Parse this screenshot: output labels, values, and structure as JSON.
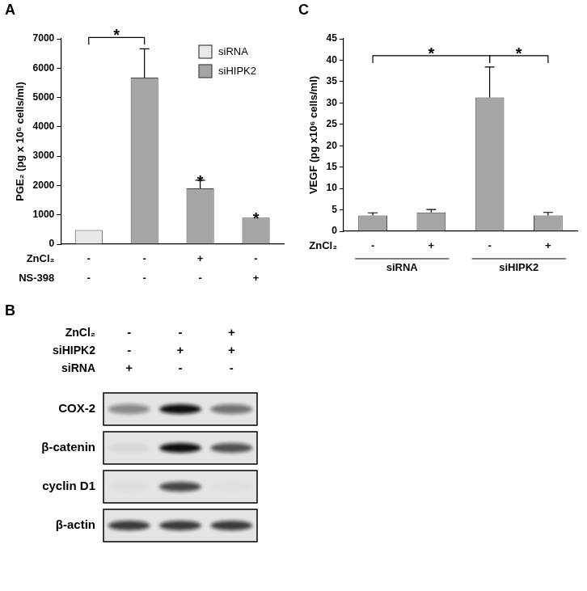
{
  "chart_data": [
    {
      "panel": "A",
      "type": "bar",
      "y_label": "PGE₂ (pg x 10⁶ cells/ml)",
      "categories": [
        null,
        null,
        null,
        null
      ],
      "series": [
        {
          "name": "siRNA",
          "color": "#e8e8e8",
          "values": [
            480,
            null,
            null,
            null
          ],
          "errors": [
            null,
            null,
            null,
            null
          ]
        },
        {
          "name": "siHIPK2",
          "color": "#a5a5a5",
          "values": [
            null,
            5680,
            1900,
            900
          ],
          "errors": [
            null,
            980,
            280,
            null
          ]
        }
      ],
      "ylim": [
        0,
        7000
      ],
      "yticks": [
        0,
        1000,
        2000,
        3000,
        4000,
        5000,
        6000,
        7000
      ],
      "grid": false,
      "legend": "upper right",
      "conditions": [
        {
          "label": "ZnCl₂",
          "values": [
            "-",
            "-",
            "+",
            "-"
          ]
        },
        {
          "label": "NS-398",
          "values": [
            "-",
            "-",
            "-",
            "+"
          ]
        }
      ],
      "significance": [
        {
          "from": 0,
          "to": 1,
          "label": "*"
        },
        {
          "at": 2,
          "label": "*"
        },
        {
          "at": 3,
          "label": "*"
        }
      ]
    },
    {
      "panel": "C",
      "type": "bar",
      "y_label": "VEGF (pg x10⁶ cells/ml)",
      "categories": [
        null,
        null,
        null,
        null
      ],
      "color": "#a5a5a5",
      "values": [
        3.7,
        4.4,
        31.3,
        3.7
      ],
      "errors": [
        0.6,
        0.7,
        7.1,
        0.7
      ],
      "ylim": [
        0,
        45
      ],
      "yticks": [
        0,
        5,
        10,
        15,
        20,
        25,
        30,
        35,
        40,
        45
      ],
      "grid": false,
      "conditions": [
        {
          "label": "ZnCl₂",
          "values": [
            "-",
            "+",
            "-",
            "+"
          ]
        }
      ],
      "groups": [
        {
          "label": "siRNA",
          "from": 0,
          "to": 1
        },
        {
          "label": "siHIPK2",
          "from": 2,
          "to": 3
        }
      ],
      "significance": [
        {
          "from": 0,
          "to": 2,
          "label": "*"
        },
        {
          "from": 2,
          "to": 3,
          "label": "*"
        }
      ]
    }
  ],
  "blot": {
    "panel": "B",
    "conditions": [
      {
        "label": "ZnCl₂",
        "values": [
          "-",
          "-",
          "+"
        ]
      },
      {
        "label": "siHIPK2",
        "values": [
          "-",
          "+",
          "+"
        ]
      },
      {
        "label": "siRNA",
        "values": [
          "+",
          "-",
          "-"
        ]
      }
    ],
    "bands": [
      {
        "label": "COX-2",
        "intensity": [
          0.45,
          1,
          0.55
        ]
      },
      {
        "label": "β-catenin",
        "intensity": [
          0.05,
          1,
          0.7
        ]
      },
      {
        "label": "cyclin D1",
        "intensity": [
          0.03,
          0.75,
          0.02
        ]
      },
      {
        "label": "β-actin",
        "intensity": [
          0.8,
          0.8,
          0.8
        ]
      }
    ]
  }
}
